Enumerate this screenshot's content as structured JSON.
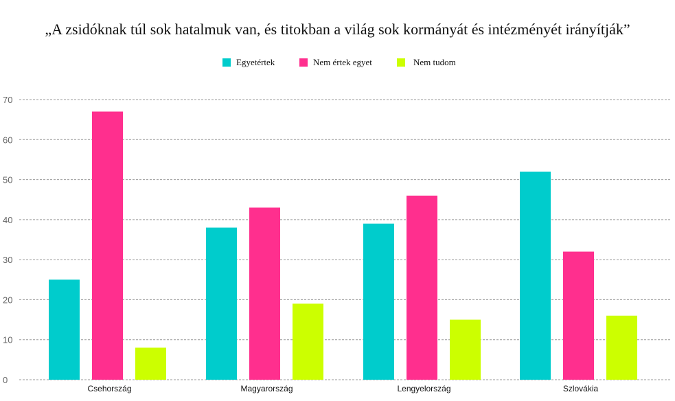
{
  "chart_data": {
    "type": "bar",
    "title": "„A zsidóknak túl sok hatalmuk van, és titokban a világ sok kormányát és intézményét irányítják”",
    "categories": [
      "Csehország",
      "Magyarország",
      "Lengyelország",
      "Szlovákia"
    ],
    "series": [
      {
        "name": "Egyetértek",
        "color": "#00CCCC",
        "values": [
          25,
          38,
          39,
          52
        ]
      },
      {
        "name": "Nem értek egyet",
        "color": "#FF2F8E",
        "values": [
          67,
          43,
          46,
          32
        ]
      },
      {
        "name": "Nem tudom",
        "color": "#CCFF00",
        "values": [
          8,
          19,
          15,
          16
        ]
      }
    ],
    "ylim": [
      0,
      70
    ],
    "yticks": [
      0,
      10,
      20,
      30,
      40,
      50,
      60,
      70
    ],
    "grid": true,
    "legend_position": "top",
    "xlabel": "",
    "ylabel": ""
  }
}
